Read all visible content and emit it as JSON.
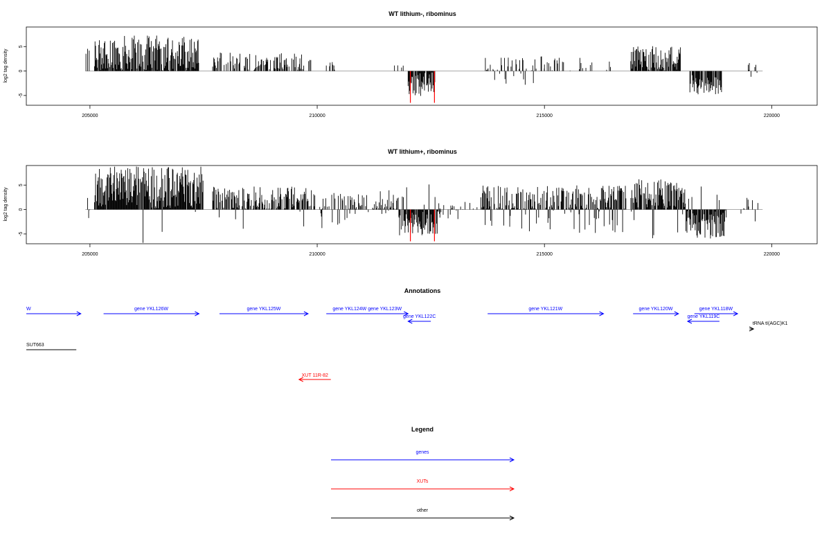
{
  "chart_data": [
    {
      "type": "bar",
      "title": "WT lithium-, ribominus",
      "ylabel": "log2 tag density",
      "xlabel": "",
      "xlim": [
        203600,
        221000
      ],
      "ylim": [
        -7,
        9
      ],
      "yticks": [
        -5,
        0,
        5
      ],
      "xticks": [
        205000,
        210000,
        215000,
        220000
      ],
      "tick_labels": [
        "205000",
        "210000",
        "215000",
        "220000"
      ],
      "ytick_labels": [
        "-5",
        "0",
        "5"
      ],
      "baseline_range": [
        204900,
        219800
      ],
      "regions": [
        {
          "from": 204900,
          "to": 205000,
          "base": 3.0,
          "spread": 2.0,
          "density": 0.55,
          "neg": 0.0
        },
        {
          "from": 205100,
          "to": 207400,
          "base": 3.3,
          "spread": 4.0,
          "density": 0.9,
          "neg": 0.0
        },
        {
          "from": 207700,
          "to": 209900,
          "base": 2.0,
          "spread": 1.8,
          "density": 0.5,
          "neg": 0.0
        },
        {
          "from": 210200,
          "to": 210400,
          "base": 1.2,
          "spread": 1.0,
          "density": 0.4,
          "neg": 0.0
        },
        {
          "from": 211700,
          "to": 212000,
          "base": 1.0,
          "spread": 0.5,
          "density": 0.2,
          "neg": 0.0
        },
        {
          "from": 212000,
          "to": 212600,
          "base": -2.6,
          "spread": 2.5,
          "density": 0.9,
          "neg": 1.0
        },
        {
          "from": 213700,
          "to": 215000,
          "base": 1.2,
          "spread": 1.8,
          "density": 0.35,
          "neg": 0.05
        },
        {
          "from": 215000,
          "to": 216500,
          "base": 1.2,
          "spread": 1.5,
          "density": 0.25,
          "neg": 0.05
        },
        {
          "from": 216900,
          "to": 218000,
          "base": 2.6,
          "spread": 2.5,
          "density": 0.85,
          "neg": 0.0
        },
        {
          "from": 218200,
          "to": 218900,
          "base": -2.8,
          "spread": 2.0,
          "density": 0.85,
          "neg": 1.0
        },
        {
          "from": 219400,
          "to": 219700,
          "base": 1.0,
          "spread": 1.0,
          "density": 0.25,
          "neg": 0.2
        }
      ],
      "highlights": [
        {
          "x": 212050,
          "y": -6.5
        },
        {
          "x": 212580,
          "y": -6.5
        }
      ],
      "notes": "Signal tracks are dense per-base bar plots; values are estimated by region from the visual envelope."
    },
    {
      "type": "bar",
      "title": "WT lithium+, ribominus",
      "ylabel": "log2 tag density",
      "xlabel": "",
      "xlim": [
        203600,
        221000
      ],
      "ylim": [
        -7,
        9
      ],
      "yticks": [
        -5,
        0,
        5
      ],
      "xticks": [
        205000,
        210000,
        215000,
        220000
      ],
      "tick_labels": [
        "205000",
        "210000",
        "215000",
        "220000"
      ],
      "ytick_labels": [
        "-5",
        "0",
        "5"
      ],
      "baseline_range": [
        204900,
        219800
      ],
      "regions": [
        {
          "from": 204900,
          "to": 205000,
          "base": 2.0,
          "spread": 2.0,
          "density": 0.5,
          "neg": 0.3
        },
        {
          "from": 205100,
          "to": 207500,
          "base": 4.5,
          "spread": 4.3,
          "density": 0.95,
          "neg": 0.02
        },
        {
          "from": 207700,
          "to": 209900,
          "base": 2.2,
          "spread": 2.5,
          "density": 0.7,
          "neg": 0.05
        },
        {
          "from": 209900,
          "to": 211800,
          "base": 1.5,
          "spread": 2.5,
          "density": 0.55,
          "neg": 0.25
        },
        {
          "from": 211800,
          "to": 212700,
          "base": -2.8,
          "spread": 2.5,
          "density": 0.9,
          "neg": 0.9
        },
        {
          "from": 212700,
          "to": 213600,
          "base": 1.0,
          "spread": 1.2,
          "density": 0.2,
          "neg": 0.2
        },
        {
          "from": 213600,
          "to": 216800,
          "base": 2.3,
          "spread": 2.7,
          "density": 0.8,
          "neg": 0.15
        },
        {
          "from": 216900,
          "to": 218100,
          "base": 3.2,
          "spread": 3.0,
          "density": 0.9,
          "neg": 0.05
        },
        {
          "from": 218100,
          "to": 219000,
          "base": -3.0,
          "spread": 3.0,
          "density": 0.9,
          "neg": 0.95
        },
        {
          "from": 219300,
          "to": 219700,
          "base": 1.2,
          "spread": 1.5,
          "density": 0.35,
          "neg": 0.3
        }
      ],
      "highlights": [
        {
          "x": 212050,
          "y": -6.5
        },
        {
          "x": 212580,
          "y": -6.5
        }
      ]
    }
  ],
  "annotations": {
    "title": "Annotations",
    "xlim": [
      203600,
      221000
    ],
    "features": [
      {
        "label": "W",
        "from": 203600,
        "to": 204800,
        "dir": "+",
        "kind": "gene",
        "row": 0
      },
      {
        "label": "gene YKL126W",
        "from": 205300,
        "to": 207400,
        "dir": "+",
        "kind": "gene",
        "row": 0
      },
      {
        "label": "gene YKL125W",
        "from": 207850,
        "to": 209800,
        "dir": "+",
        "kind": "gene",
        "row": 0
      },
      {
        "label": "gene YKL124W gene YKL123W",
        "from": 210200,
        "to": 212000,
        "dir": "+",
        "kind": "gene",
        "row": 0
      },
      {
        "label": "gene YKL122C",
        "from": 212000,
        "to": 212500,
        "dir": "-",
        "kind": "gene",
        "row": 1
      },
      {
        "label": "gene YKL121W",
        "from": 213750,
        "to": 216300,
        "dir": "+",
        "kind": "gene",
        "row": 0
      },
      {
        "label": "gene YKL120W",
        "from": 216950,
        "to": 217950,
        "dir": "+",
        "kind": "gene",
        "row": 0
      },
      {
        "label": "gene YKL118W",
        "from": 218300,
        "to": 219250,
        "dir": "+",
        "kind": "gene",
        "row": 0
      },
      {
        "label": "gene YKL119C",
        "from": 218150,
        "to": 218850,
        "dir": "-",
        "kind": "gene",
        "row": 1
      },
      {
        "label": "tRNA tI(AGC)K1",
        "from": 219510,
        "to": 219600,
        "dir": "+",
        "kind": "other",
        "row": 2
      },
      {
        "label": "SUT663",
        "from": 203600,
        "to": 204700,
        "dir": "none",
        "kind": "other",
        "row": 3
      },
      {
        "label": "XUT 11R-82",
        "from": 209600,
        "to": 210300,
        "dir": "-",
        "kind": "xut",
        "row": 4
      }
    ]
  },
  "legend": {
    "title": "Legend",
    "items": [
      {
        "label": "genes",
        "color": "#0000ff"
      },
      {
        "label": "XUTs",
        "color": "#ff0000"
      },
      {
        "label": "other",
        "color": "#000000"
      }
    ]
  },
  "colors": {
    "gene": "#0000ff",
    "xut": "#ff0000",
    "other": "#000000",
    "signal": "#000000",
    "highlight": "#ff0000",
    "baseline": "#9e9e9e"
  }
}
